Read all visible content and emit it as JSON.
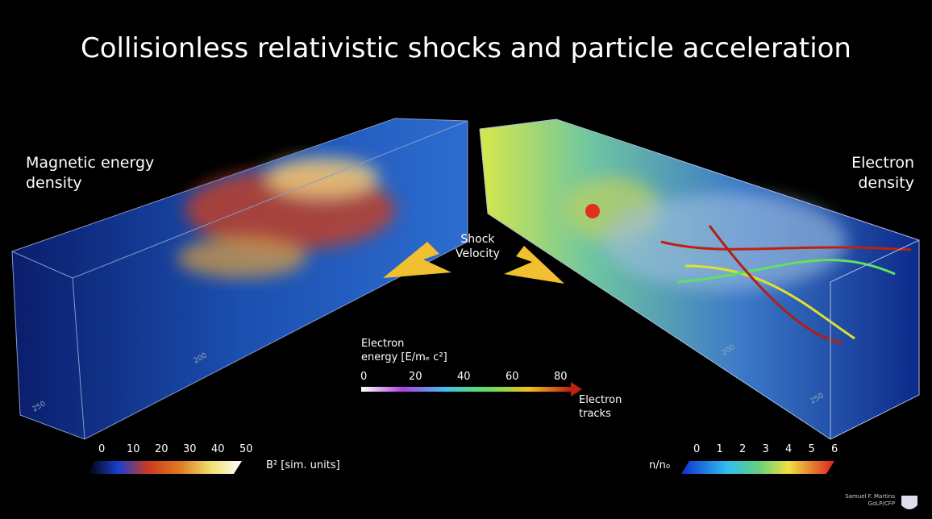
{
  "title": "Collisionless relativistic shocks and particle acceleration",
  "left_label": [
    "Magnetic energy",
    "density"
  ],
  "right_label": [
    "Electron",
    "density"
  ],
  "shock_label": [
    "Shock",
    "Velocity"
  ],
  "energy_label": [
    "Electron",
    "energy [E/mₑ c²]"
  ],
  "energy_ticks": [
    0,
    20,
    40,
    60,
    80
  ],
  "tracks_label": [
    "Electron",
    "tracks"
  ],
  "b_colorbar": {
    "ticks": [
      0,
      10,
      20,
      30,
      40,
      50
    ],
    "unit": "B² [sim. units]"
  },
  "n_colorbar": {
    "ticks": [
      0,
      1,
      2,
      3,
      4,
      5,
      6
    ],
    "unit": "n/n₀"
  },
  "left_box_ticks": [
    "200",
    "250"
  ],
  "right_box_ticks": [
    "200",
    "250"
  ],
  "credit": [
    "Samuel F. Martins",
    "GoLP/CFP"
  ]
}
